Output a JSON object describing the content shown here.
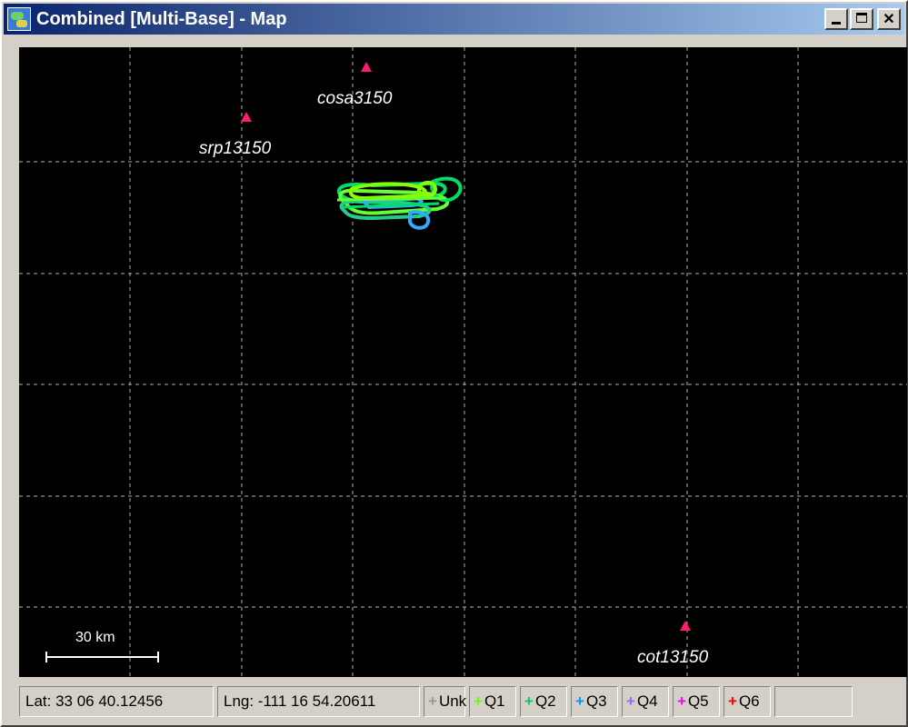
{
  "window": {
    "title": "Combined [Multi-Base] - Map",
    "icon": "map-app-icon",
    "buttons": [
      "minimize",
      "maximize",
      "close"
    ]
  },
  "map": {
    "background": "#000000",
    "grid_color": "#b0b0b0",
    "station_color": "#ff1a75",
    "stations": [
      {
        "name": "cosa3150"
      },
      {
        "name": "srp13150"
      },
      {
        "name": "cot13150"
      }
    ],
    "scale_bar": {
      "label": "30 km"
    },
    "track_colors": [
      "#66ff33",
      "#00dd66",
      "#33aaff",
      "#88ff00",
      "#22cc88"
    ]
  },
  "status": {
    "lat": "Lat: 33 06 40.12456",
    "lng": "Lng: -111 16 54.20611",
    "legend": [
      {
        "label": "Unk",
        "color": "#9a9a9a"
      },
      {
        "label": "Q1",
        "color": "#66ff00"
      },
      {
        "label": "Q2",
        "color": "#00cc66"
      },
      {
        "label": "Q3",
        "color": "#0099ff"
      },
      {
        "label": "Q4",
        "color": "#9966ff"
      },
      {
        "label": "Q5",
        "color": "#ff00ff"
      },
      {
        "label": "Q6",
        "color": "#ff0000"
      }
    ]
  }
}
